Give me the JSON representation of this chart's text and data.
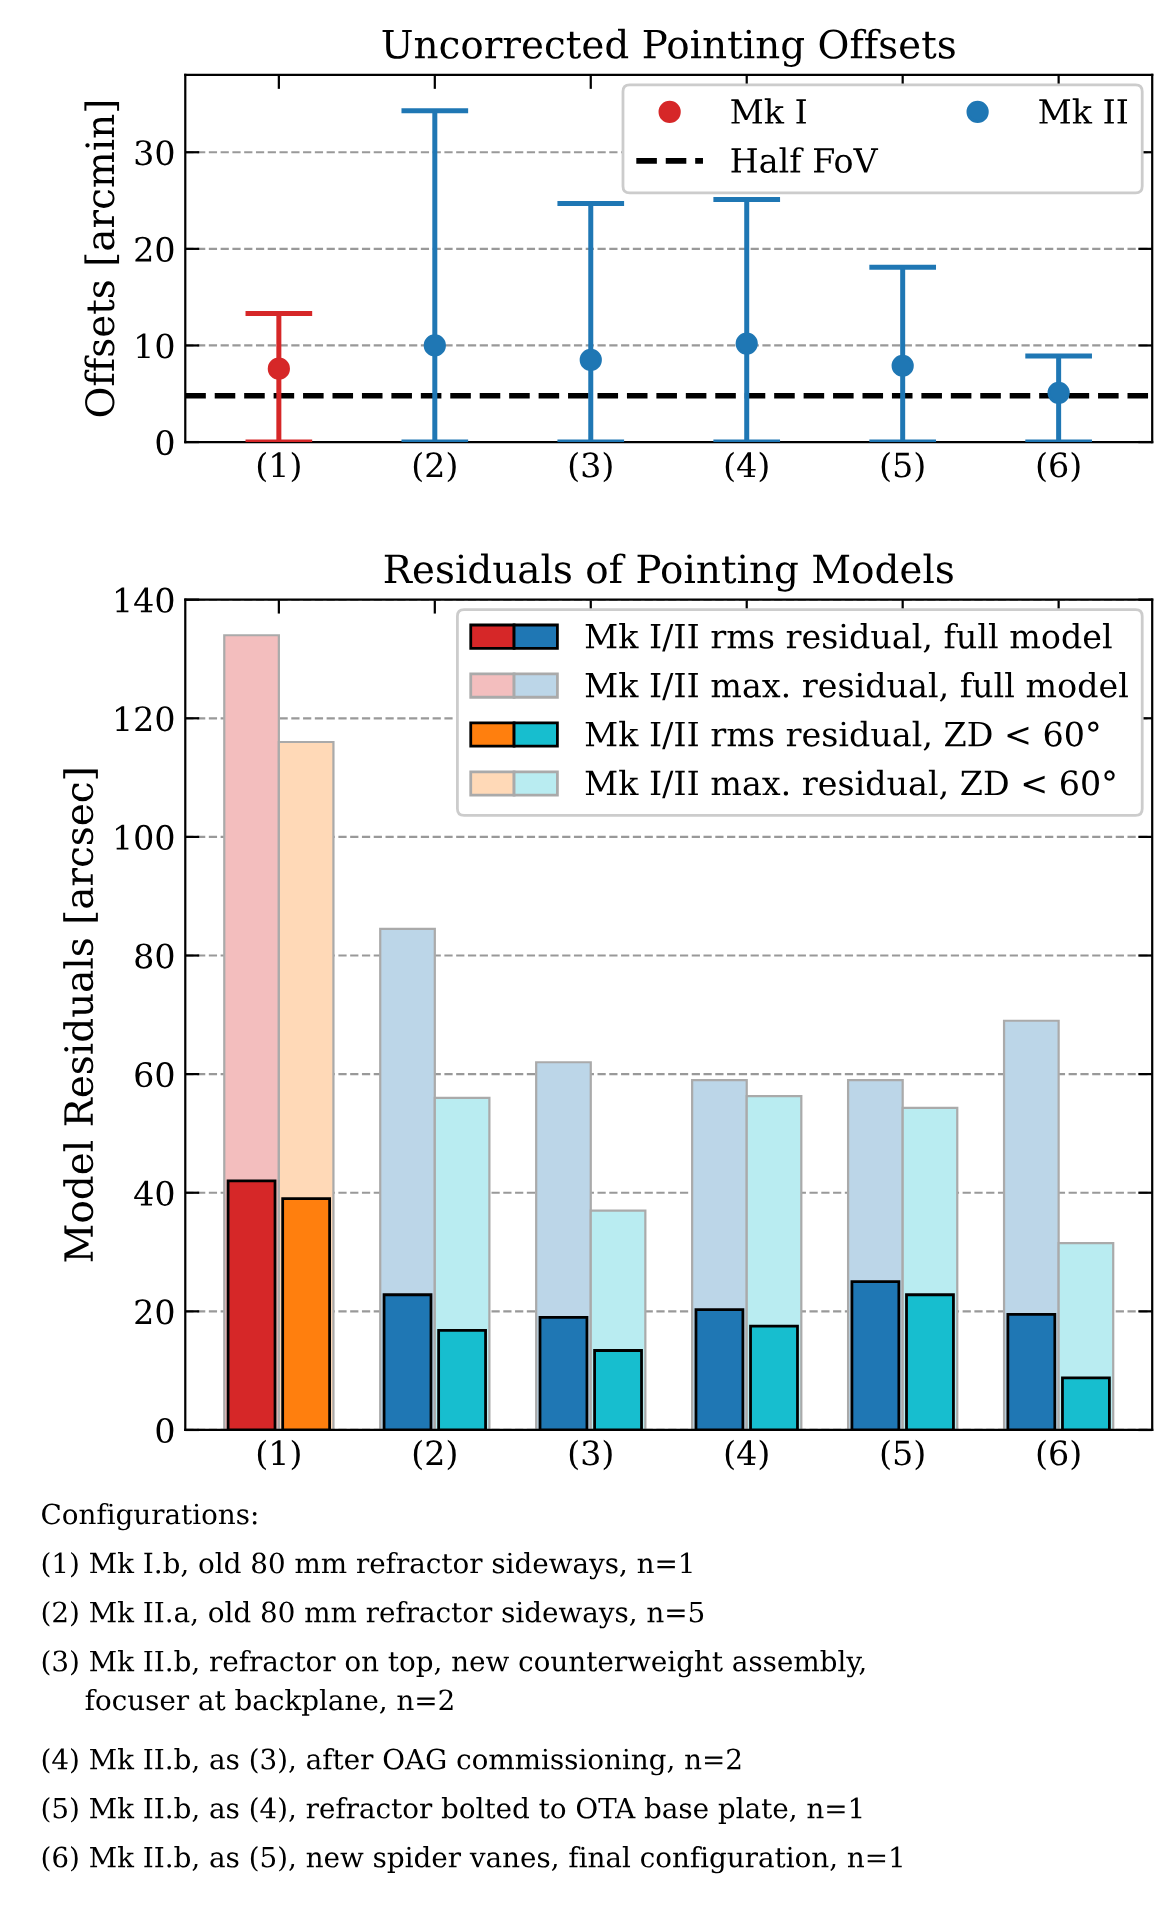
{
  "chart_data": [
    {
      "type": "scatter",
      "title": "Uncorrected Pointing Offsets",
      "ylabel": "Offsets [arcmin]",
      "categories": [
        "(1)",
        "(2)",
        "(3)",
        "(4)",
        "(5)",
        "(6)"
      ],
      "series": [
        {
          "name": "Mk I",
          "color": "#d62728",
          "values": [
            7.6,
            null,
            null,
            null,
            null,
            null
          ],
          "errors": [
            [
              0,
              13.3
            ],
            null,
            null,
            null,
            null,
            null
          ]
        },
        {
          "name": "Mk II",
          "color": "#1f77b4",
          "values": [
            null,
            10.0,
            8.5,
            10.2,
            7.9,
            5.1
          ],
          "errors": [
            null,
            [
              0,
              34.3
            ],
            [
              0,
              24.7
            ],
            [
              0,
              25.1
            ],
            [
              0,
              18.1
            ],
            [
              0,
              8.9
            ]
          ]
        }
      ],
      "ylim": [
        0,
        38
      ],
      "yticks": [
        0,
        10,
        20,
        30
      ],
      "grid": "y",
      "legend": "top right",
      "marker": "circle",
      "ref_lines": [
        {
          "axis": "y",
          "value": 4.8,
          "label": "Half FoV",
          "color": "#000000",
          "line_style": "dashed"
        }
      ]
    },
    {
      "type": "bar",
      "title": "Residuals of Pointing Models",
      "ylabel": "Model Residuals [arcsec]",
      "categories": [
        "(1)",
        "(2)",
        "(3)",
        "(4)",
        "(5)",
        "(6)"
      ],
      "series": [
        {
          "name": "Mk I/II rms residual, full model",
          "colors": [
            "#d62728",
            "#1f77b4",
            "#1f77b4",
            "#1f77b4",
            "#1f77b4",
            "#1f77b4"
          ],
          "values": [
            42,
            22.8,
            19,
            20.3,
            25,
            19.5
          ]
        },
        {
          "name": "Mk I/II max. residual, full model",
          "colors": [
            "#f3bebe",
            "#bcd6e8",
            "#bcd6e8",
            "#bcd6e8",
            "#bcd6e8",
            "#bcd6e8"
          ],
          "values": [
            134,
            84.5,
            62,
            59,
            59,
            69
          ]
        },
        {
          "name": "Mk I/II rms residual, ZD < 60°",
          "colors": [
            "#ff7f0e",
            "#17becf",
            "#17becf",
            "#17becf",
            "#17becf",
            "#17becf"
          ],
          "values": [
            39,
            16.8,
            13.4,
            17.5,
            22.8,
            8.8
          ]
        },
        {
          "name": "Mk I/II max. residual, ZD < 60°",
          "colors": [
            "#ffd9b7",
            "#b9ecf1",
            "#b9ecf1",
            "#b9ecf1",
            "#b9ecf1",
            "#b9ecf1"
          ],
          "values": [
            116,
            56,
            37,
            56.3,
            54.3,
            31.5
          ]
        }
      ],
      "ylim": [
        0,
        140
      ],
      "yticks": [
        0,
        20,
        40,
        60,
        80,
        100,
        120,
        140
      ],
      "grid": "y",
      "legend": "top right",
      "annotations": [
        "Configurations:",
        "(1) Mk I.b, old 80 mm refractor sideways, n=1",
        "(2) Mk II.a, old 80 mm refractor sideways, n=5",
        "(3) Mk II.b, refractor on top, new counterweight assembly,\n     focuser at backplane, n=2",
        "(4) Mk II.b, as (3), after OAG commissioning, n=2",
        "(5) Mk II.b, as (4), refractor bolted to OTA base plate, n=1",
        "(6) Mk II.b, as (5), new spider vanes, final configuration, n=1"
      ]
    }
  ]
}
